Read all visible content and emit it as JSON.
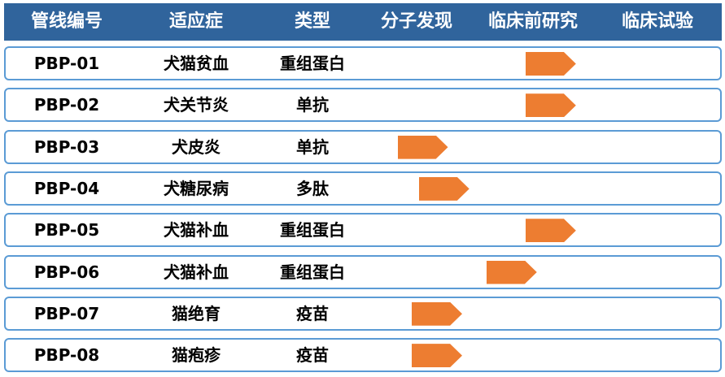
{
  "header": [
    "管线编号",
    "适应症",
    "类型",
    "分子发现",
    "临床前研究",
    "临床试验"
  ],
  "colors": {
    "header_bg": "#30649c",
    "row_border": "#5b9bd5",
    "arrow": "#ed7d31"
  },
  "rows": [
    {
      "id": "PBP-01",
      "indication": "犬猫贫血",
      "type": "重组蛋白",
      "progress": 0.59
    },
    {
      "id": "PBP-02",
      "indication": "犬关节炎",
      "type": "单抗",
      "progress": 0.59
    },
    {
      "id": "PBP-03",
      "indication": "犬皮炎",
      "type": "单抗",
      "progress": 0.23
    },
    {
      "id": "PBP-04",
      "indication": "犬糖尿病",
      "type": "多肽",
      "progress": 0.29
    },
    {
      "id": "PBP-05",
      "indication": "犬猫补血",
      "type": "重组蛋白",
      "progress": 0.59
    },
    {
      "id": "PBP-06",
      "indication": "犬猫补血",
      "type": "重组蛋白",
      "progress": 0.48
    },
    {
      "id": "PBP-07",
      "indication": "猫绝育",
      "type": "疫苗",
      "progress": 0.27
    },
    {
      "id": "PBP-08",
      "indication": "猫疱疹",
      "type": "疫苗",
      "progress": 0.27
    }
  ]
}
